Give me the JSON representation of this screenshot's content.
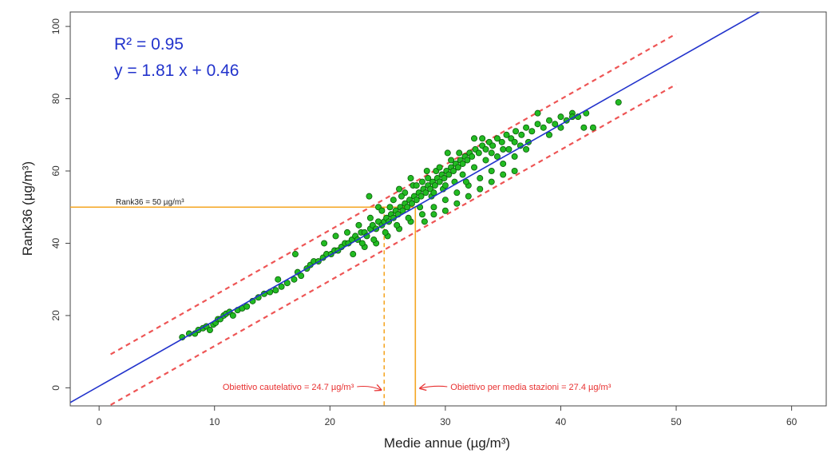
{
  "chart_data": {
    "type": "scatter",
    "title": "",
    "xlabel": "Medie annue  (µg/m³)",
    "ylabel": "Rank36  (µg/m³)",
    "xlim": [
      -2.5,
      63
    ],
    "ylim": [
      -5,
      104
    ],
    "x_ticks": [
      0,
      10,
      20,
      30,
      40,
      50,
      60
    ],
    "y_ticks": [
      0,
      20,
      40,
      60,
      80,
      100
    ],
    "grid": false,
    "stats": {
      "r2": "R² = 0.95",
      "equation": "y = 1.81 x + 0.46"
    },
    "regression": {
      "slope": 1.81,
      "intercept": 0.46
    },
    "prediction_band": {
      "offset": 7,
      "x_range": [
        1,
        50
      ]
    },
    "threshold": {
      "y": 50,
      "label": "Rank36 = 50 µg/m³"
    },
    "objectives": [
      {
        "x": 24.7,
        "label": "Obiettivo cautelativo = 24.7 µg/m³",
        "style": "dashed"
      },
      {
        "x": 27.4,
        "label": "Obiettivo per media stazioni = 27.4 µg/m³",
        "style": "solid"
      }
    ],
    "colors": {
      "points_fill": "#22bb22",
      "points_stroke": "#0a5a0a",
      "regression": "#2233cc",
      "band": "#ee5555",
      "threshold": "#f5a623",
      "annotation_text": "#e83030"
    },
    "points": [
      [
        7.2,
        14
      ],
      [
        7.8,
        15
      ],
      [
        8.3,
        15
      ],
      [
        8.6,
        16
      ],
      [
        9.0,
        16.5
      ],
      [
        9.3,
        17
      ],
      [
        9.6,
        16
      ],
      [
        9.9,
        17.5
      ],
      [
        10.1,
        18
      ],
      [
        10.3,
        19
      ],
      [
        10.5,
        19
      ],
      [
        10.8,
        20
      ],
      [
        11.0,
        20.5
      ],
      [
        11.3,
        21
      ],
      [
        11.6,
        20
      ],
      [
        12.0,
        21.5
      ],
      [
        12.4,
        22
      ],
      [
        12.8,
        22.5
      ],
      [
        13.3,
        24
      ],
      [
        13.8,
        25
      ],
      [
        14.3,
        26
      ],
      [
        14.8,
        26.5
      ],
      [
        15.3,
        27
      ],
      [
        15.8,
        28
      ],
      [
        16.3,
        29
      ],
      [
        16.9,
        30
      ],
      [
        17.2,
        32
      ],
      [
        17.5,
        31
      ],
      [
        18.0,
        33
      ],
      [
        18.3,
        34
      ],
      [
        18.6,
        35
      ],
      [
        19.0,
        35
      ],
      [
        19.4,
        36
      ],
      [
        19.7,
        37
      ],
      [
        20.1,
        37
      ],
      [
        20.4,
        38
      ],
      [
        20.7,
        38
      ],
      [
        21.0,
        39
      ],
      [
        21.3,
        40
      ],
      [
        21.6,
        40
      ],
      [
        21.9,
        41
      ],
      [
        22.2,
        42
      ],
      [
        22.4,
        41
      ],
      [
        22.7,
        43
      ],
      [
        23.0,
        43
      ],
      [
        23.2,
        42
      ],
      [
        23.5,
        44
      ],
      [
        23.7,
        45
      ],
      [
        24.0,
        44
      ],
      [
        24.2,
        46
      ],
      [
        24.5,
        45
      ],
      [
        24.7,
        46
      ],
      [
        24.9,
        47
      ],
      [
        25.1,
        46
      ],
      [
        25.3,
        48
      ],
      [
        25.5,
        47
      ],
      [
        25.7,
        49
      ],
      [
        25.9,
        48
      ],
      [
        26.1,
        50
      ],
      [
        26.3,
        49
      ],
      [
        26.5,
        51
      ],
      [
        26.7,
        50
      ],
      [
        26.9,
        52
      ],
      [
        27.1,
        51
      ],
      [
        27.3,
        53
      ],
      [
        27.5,
        52
      ],
      [
        27.7,
        54
      ],
      [
        27.9,
        53
      ],
      [
        28.1,
        55
      ],
      [
        28.3,
        54
      ],
      [
        28.5,
        56
      ],
      [
        28.7,
        55
      ],
      [
        28.9,
        57
      ],
      [
        29.1,
        56
      ],
      [
        29.3,
        58
      ],
      [
        29.5,
        57
      ],
      [
        29.7,
        59
      ],
      [
        29.9,
        58
      ],
      [
        30.1,
        60
      ],
      [
        30.3,
        59
      ],
      [
        30.5,
        61
      ],
      [
        30.7,
        60
      ],
      [
        30.9,
        62
      ],
      [
        31.1,
        61
      ],
      [
        31.3,
        63
      ],
      [
        31.5,
        62
      ],
      [
        31.7,
        64
      ],
      [
        31.9,
        63
      ],
      [
        32.1,
        65
      ],
      [
        32.3,
        64
      ],
      [
        32.6,
        66
      ],
      [
        32.9,
        65
      ],
      [
        33.2,
        67
      ],
      [
        33.5,
        66
      ],
      [
        33.8,
        68
      ],
      [
        34.1,
        67
      ],
      [
        34.5,
        69
      ],
      [
        34.9,
        68
      ],
      [
        35.3,
        70
      ],
      [
        35.7,
        69
      ],
      [
        36.1,
        71
      ],
      [
        36.6,
        70
      ],
      [
        37.0,
        72
      ],
      [
        37.5,
        71
      ],
      [
        38.0,
        73
      ],
      [
        38.5,
        72
      ],
      [
        39.0,
        74
      ],
      [
        39.5,
        73
      ],
      [
        40.0,
        75
      ],
      [
        40.5,
        74
      ],
      [
        41.0,
        76
      ],
      [
        41.5,
        75
      ],
      [
        42.2,
        76
      ],
      [
        42.8,
        72
      ],
      [
        45.0,
        79
      ],
      [
        23.4,
        53
      ],
      [
        24.2,
        50
      ],
      [
        27.2,
        56
      ],
      [
        28.4,
        60
      ],
      [
        29.2,
        60
      ],
      [
        30.2,
        65
      ],
      [
        31.2,
        65
      ],
      [
        32.5,
        69
      ],
      [
        33.2,
        69
      ],
      [
        34.0,
        65
      ],
      [
        35.0,
        66
      ],
      [
        36.0,
        68
      ],
      [
        37.2,
        68
      ],
      [
        38.0,
        76
      ],
      [
        39.0,
        70
      ],
      [
        40.0,
        72
      ],
      [
        41.0,
        75
      ],
      [
        42.0,
        72
      ],
      [
        22.0,
        37
      ],
      [
        23.0,
        39
      ],
      [
        24.0,
        40
      ],
      [
        25.0,
        42
      ],
      [
        26.0,
        44
      ],
      [
        27.0,
        46
      ],
      [
        28.0,
        48
      ],
      [
        29.0,
        50
      ],
      [
        30.0,
        52
      ],
      [
        31.0,
        54
      ],
      [
        32.0,
        56
      ],
      [
        33.0,
        58
      ],
      [
        34.0,
        60
      ],
      [
        35.0,
        62
      ],
      [
        36.0,
        64
      ],
      [
        37.0,
        66
      ],
      [
        21.5,
        43
      ],
      [
        22.5,
        45
      ],
      [
        23.5,
        47
      ],
      [
        24.5,
        49
      ],
      [
        25.5,
        52
      ],
      [
        26.5,
        54
      ],
      [
        27.5,
        56
      ],
      [
        28.5,
        58
      ],
      [
        29.5,
        61
      ],
      [
        30.5,
        63
      ],
      [
        31.5,
        59
      ],
      [
        32.5,
        61
      ],
      [
        33.5,
        63
      ],
      [
        34.5,
        64
      ],
      [
        35.5,
        66
      ],
      [
        36.5,
        67
      ],
      [
        17.0,
        37
      ],
      [
        15.5,
        30
      ],
      [
        19.5,
        40
      ],
      [
        20.5,
        42
      ],
      [
        25.2,
        50
      ],
      [
        26.2,
        53
      ],
      [
        27.8,
        50
      ],
      [
        28.8,
        53
      ],
      [
        29.8,
        55
      ],
      [
        30.8,
        57
      ],
      [
        31.8,
        57
      ],
      [
        26.8,
        47
      ],
      [
        25.8,
        45
      ],
      [
        24.8,
        43
      ],
      [
        23.8,
        41
      ],
      [
        22.8,
        40
      ],
      [
        28.2,
        46
      ],
      [
        29.0,
        48
      ],
      [
        30.0,
        49
      ],
      [
        31.0,
        51
      ],
      [
        32.0,
        53
      ],
      [
        33.0,
        55
      ],
      [
        34.0,
        57
      ],
      [
        35.0,
        59
      ],
      [
        36.0,
        60
      ],
      [
        26.0,
        55
      ],
      [
        27.0,
        58
      ],
      [
        28.0,
        57
      ],
      [
        29.0,
        54
      ],
      [
        30.0,
        56
      ]
    ]
  }
}
